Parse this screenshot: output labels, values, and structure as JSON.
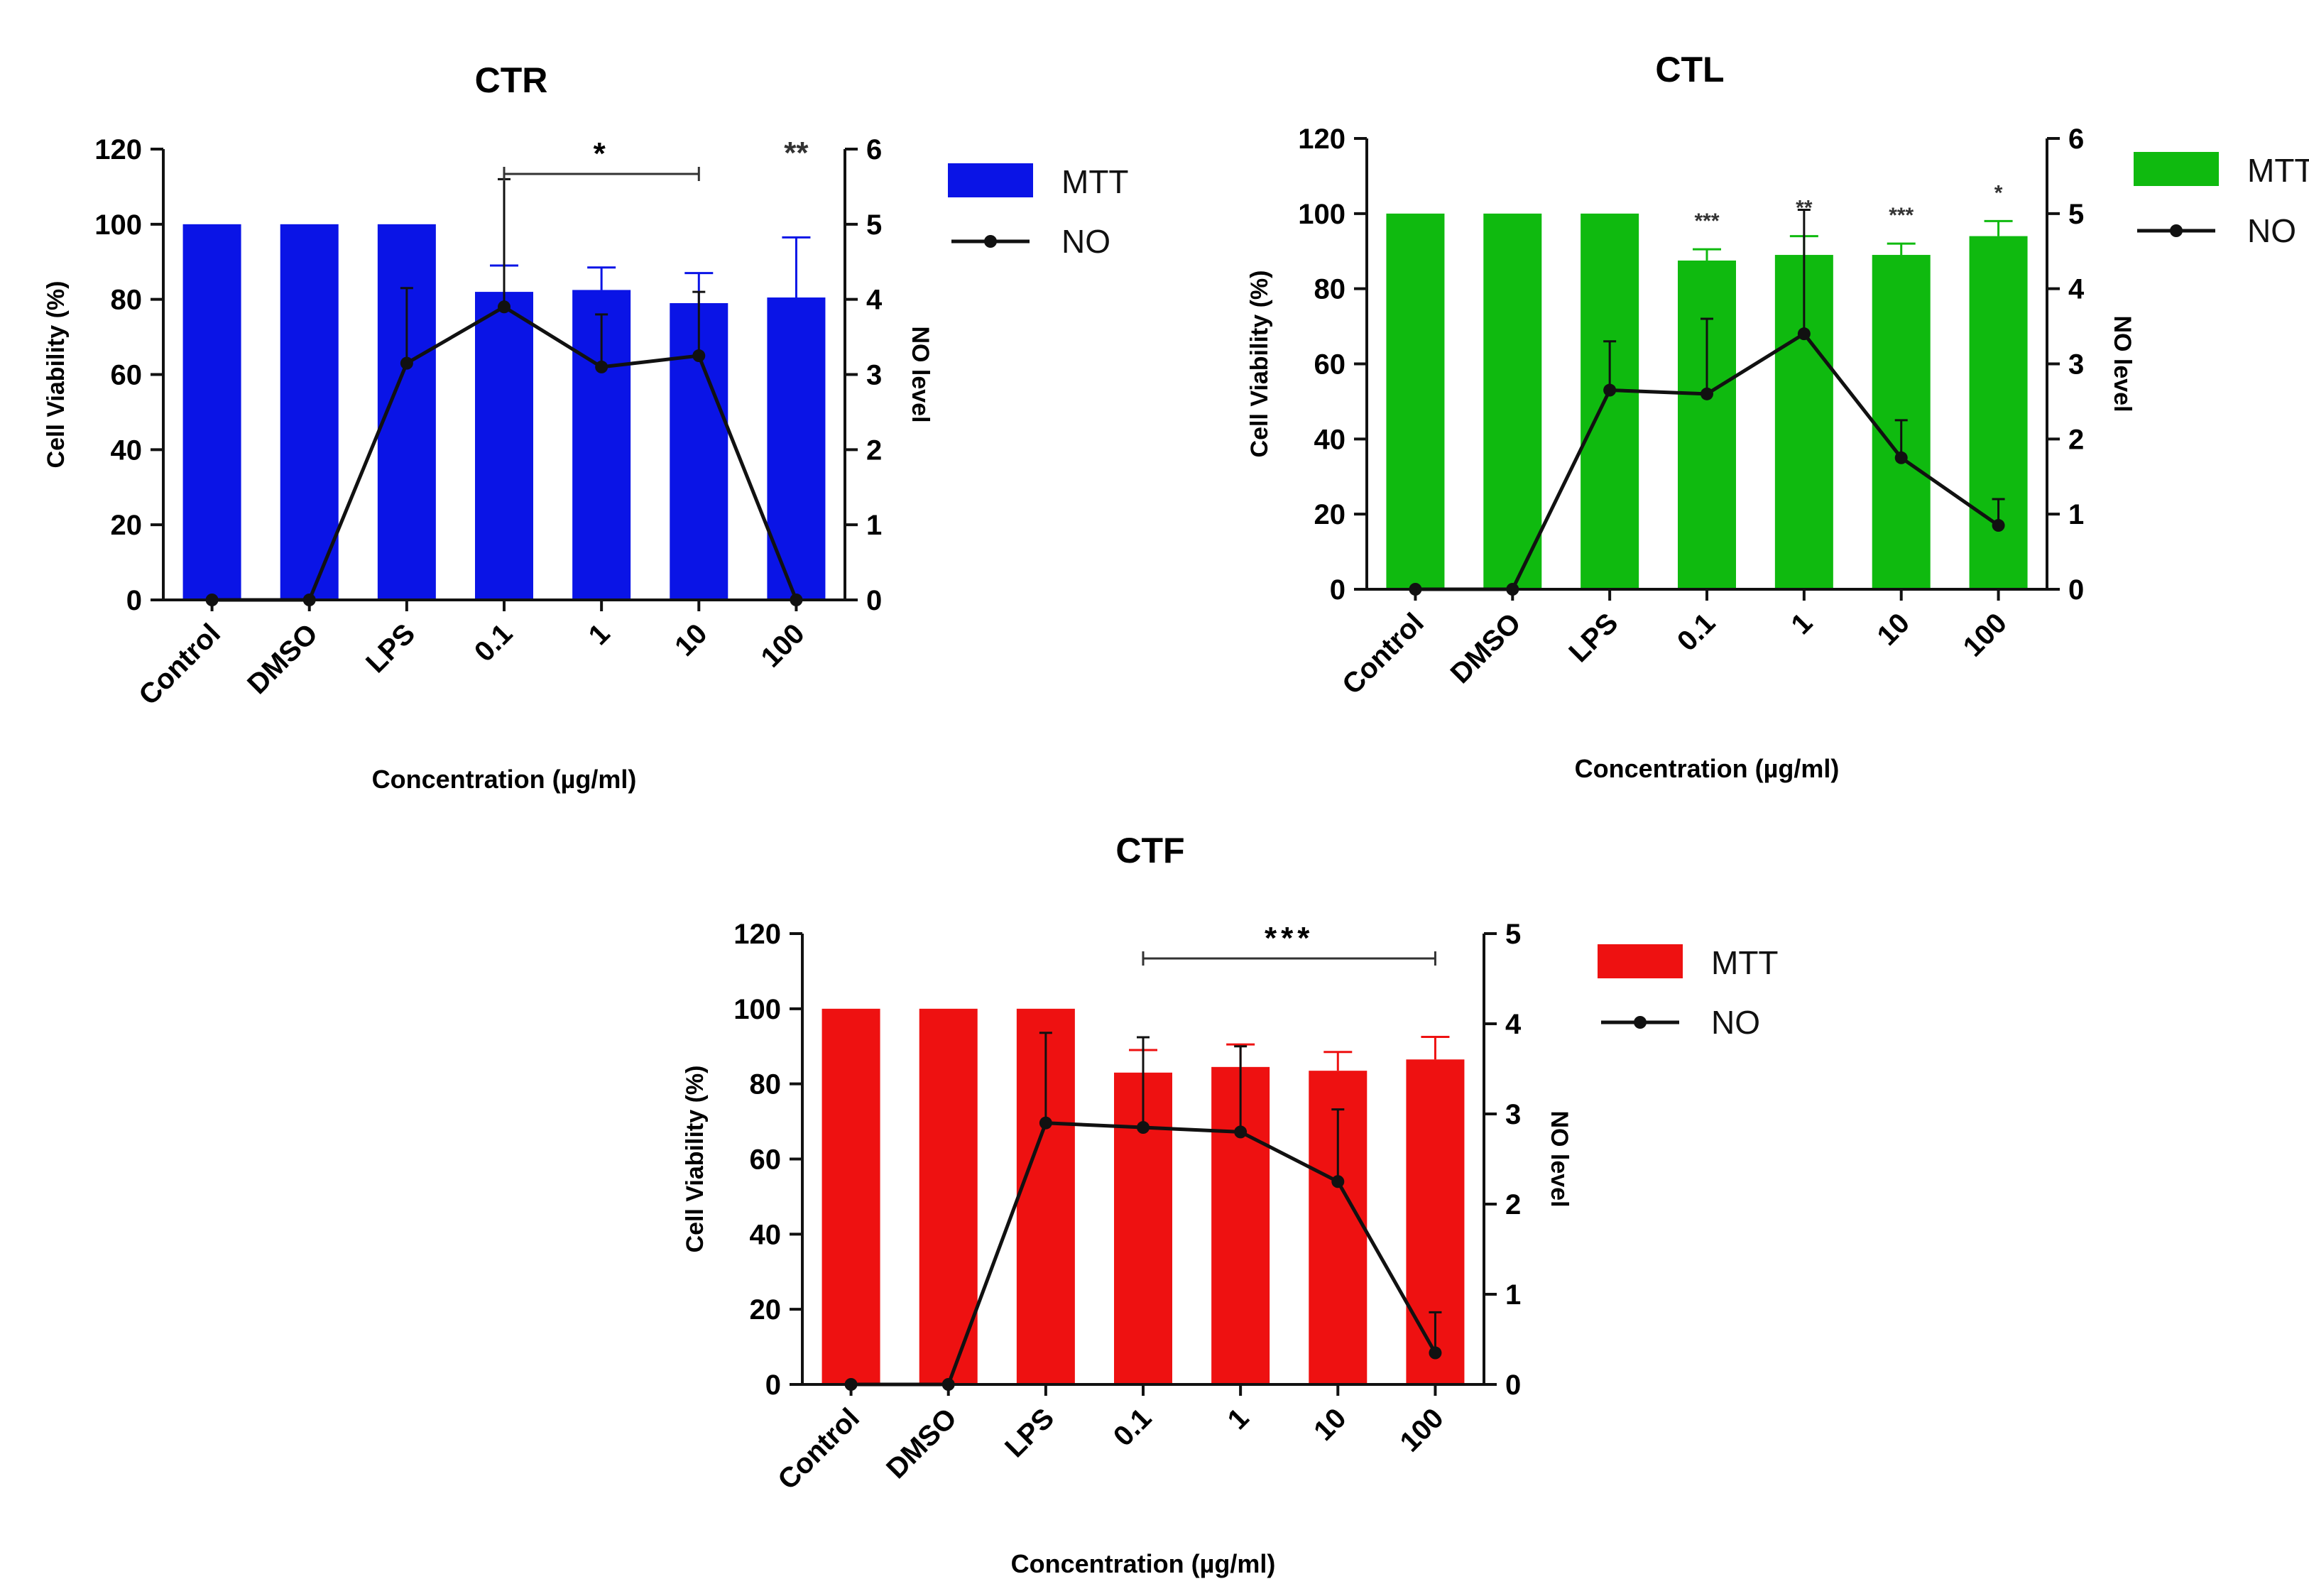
{
  "chart_data": [
    {
      "type": "bar",
      "title": "CTR",
      "xlabel": "Concentration (µg/ml)",
      "ylabel": "Cell Viability (%)",
      "y2label": "NO level",
      "ylim": [
        0,
        120
      ],
      "yticks": [
        "0",
        "20",
        "40",
        "60",
        "80",
        "100",
        "120"
      ],
      "y2lim": [
        0,
        6
      ],
      "y2ticks": [
        "0",
        "1",
        "2",
        "3",
        "4",
        "5",
        "6"
      ],
      "categories": [
        "Control",
        "DMSO",
        "LPS",
        "0.1",
        "1",
        "10",
        "100"
      ],
      "bar_color": "#0a14e6",
      "series": [
        {
          "name": "MTT",
          "type": "bar",
          "axis": "left",
          "values": [
            100,
            100,
            100,
            82,
            82.5,
            79,
            80.5
          ],
          "errors": [
            0,
            0,
            0,
            7,
            6,
            8,
            16
          ]
        },
        {
          "name": "NO",
          "type": "line",
          "axis": "right",
          "values": [
            0,
            0,
            3.15,
            3.9,
            3.1,
            3.25,
            0
          ],
          "errors": [
            0,
            0,
            1.0,
            1.7,
            0.7,
            0.85,
            0
          ]
        }
      ],
      "annotations": [
        {
          "text": "*",
          "type": "bracket",
          "from": "0.1",
          "to": "10"
        },
        {
          "text": "**",
          "type": "label",
          "at": "100"
        }
      ],
      "legend": "right"
    },
    {
      "type": "bar",
      "title": "CTL",
      "xlabel": "Concentration (µg/ml)",
      "ylabel": "Cell Viability (%)",
      "y2label": "NO level",
      "ylim": [
        0,
        120
      ],
      "yticks": [
        "0",
        "20",
        "40",
        "60",
        "80",
        "100",
        "120"
      ],
      "y2lim": [
        0,
        6
      ],
      "y2ticks": [
        "0",
        "1",
        "2",
        "3",
        "4",
        "5",
        "6"
      ],
      "categories": [
        "Control",
        "DMSO",
        "LPS",
        "0.1",
        "1",
        "10",
        "100"
      ],
      "bar_color": "#0fba0f",
      "series": [
        {
          "name": "MTT",
          "type": "bar",
          "axis": "left",
          "values": [
            100,
            100,
            100,
            87.5,
            89,
            89,
            94
          ],
          "errors": [
            0,
            0,
            0,
            3,
            5,
            3,
            4
          ]
        },
        {
          "name": "NO",
          "type": "line",
          "axis": "right",
          "values": [
            0,
            0,
            2.65,
            2.6,
            3.4,
            1.75,
            0.85
          ],
          "errors": [
            0,
            0,
            0.65,
            1.0,
            1.65,
            0.5,
            0.35
          ]
        }
      ],
      "annotations": [
        {
          "text": "***",
          "type": "label",
          "at": "0.1"
        },
        {
          "text": "**",
          "type": "label",
          "at": "1"
        },
        {
          "text": "***",
          "type": "label",
          "at": "10"
        },
        {
          "text": "*",
          "type": "label",
          "at": "100"
        }
      ],
      "legend": "right"
    },
    {
      "type": "bar",
      "title": "CTF",
      "xlabel": "Concentration (µg/ml)",
      "ylabel": "Cell Viability (%)",
      "y2label": "NO level",
      "ylim": [
        0,
        120
      ],
      "yticks": [
        "0",
        "20",
        "40",
        "60",
        "80",
        "100",
        "120"
      ],
      "y2lim": [
        0,
        5
      ],
      "y2ticks": [
        "0",
        "1",
        "2",
        "3",
        "4",
        "5"
      ],
      "categories": [
        "Control",
        "DMSO",
        "LPS",
        "0.1",
        "1",
        "10",
        "100"
      ],
      "bar_color": "#ee1111",
      "series": [
        {
          "name": "MTT",
          "type": "bar",
          "axis": "left",
          "values": [
            100,
            100,
            100,
            83,
            84.5,
            83.5,
            86.5
          ],
          "errors": [
            0,
            0,
            0,
            6,
            6,
            5,
            6
          ]
        },
        {
          "name": "NO",
          "type": "line",
          "axis": "right",
          "values": [
            0,
            0,
            2.9,
            2.85,
            2.8,
            2.25,
            0.35
          ],
          "errors": [
            0,
            0,
            1.0,
            1.0,
            0.95,
            0.8,
            0.45
          ]
        }
      ],
      "annotations": [
        {
          "text": "***",
          "type": "bracket",
          "from": "0.1",
          "to": "100"
        }
      ],
      "legend": "right"
    }
  ]
}
